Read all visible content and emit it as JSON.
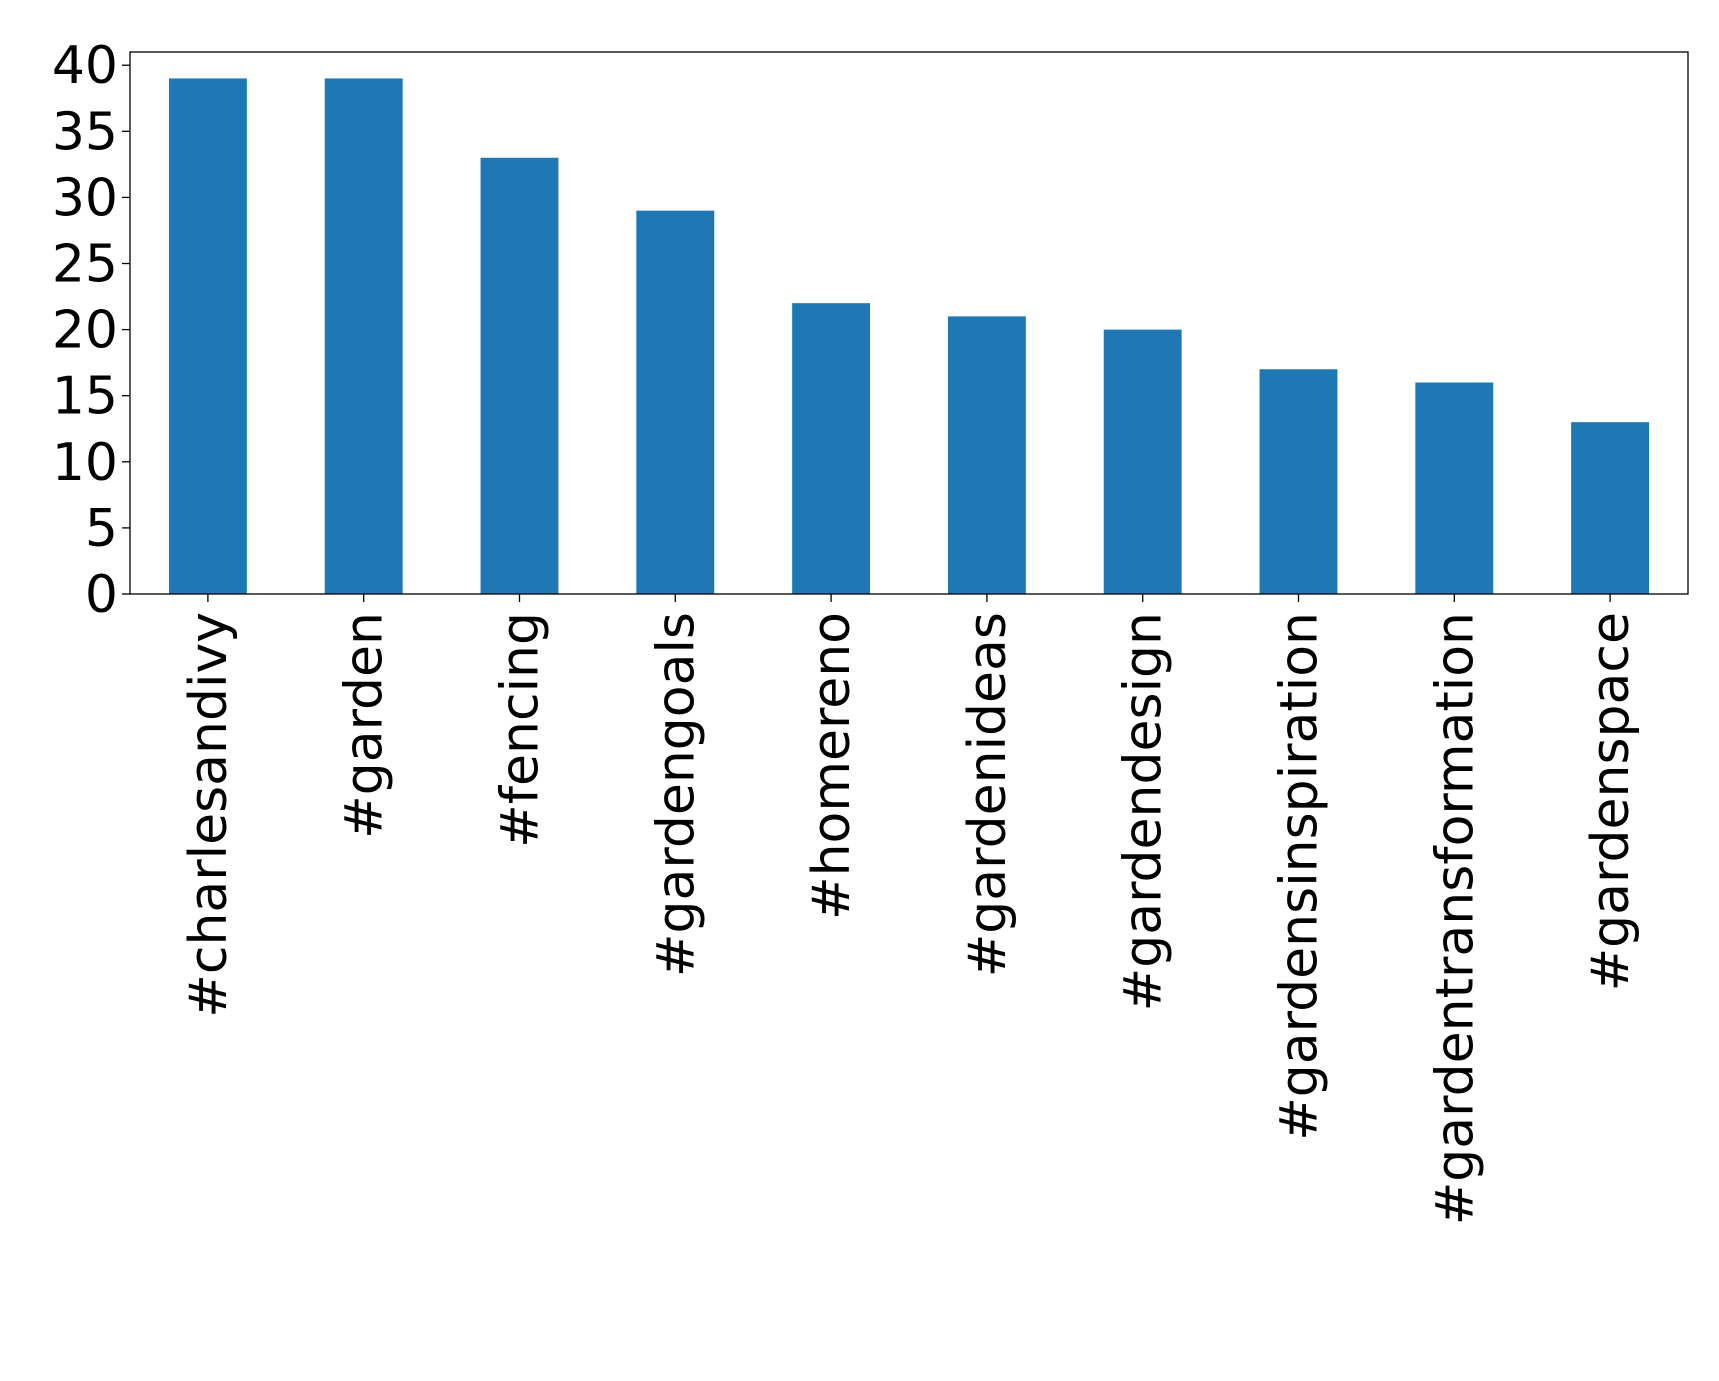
{
  "chart_data": {
    "type": "bar",
    "title": "",
    "xlabel": "",
    "ylabel": "",
    "categories": [
      "#charlesandivy",
      "#garden",
      "#fencing",
      "#gardengoals",
      "#homereno",
      "#gardenideas",
      "#gardendesign",
      "#gardensinspiration",
      "#gardentransformation",
      "#gardenspace"
    ],
    "values": [
      39,
      39,
      33,
      29,
      22,
      21,
      20,
      17,
      16,
      13
    ],
    "ylim": [
      0,
      41
    ],
    "yticks": [
      0,
      5,
      10,
      15,
      20,
      25,
      30,
      35,
      40
    ],
    "grid": false,
    "legend": "none",
    "bar_color": "#1f77b4"
  }
}
